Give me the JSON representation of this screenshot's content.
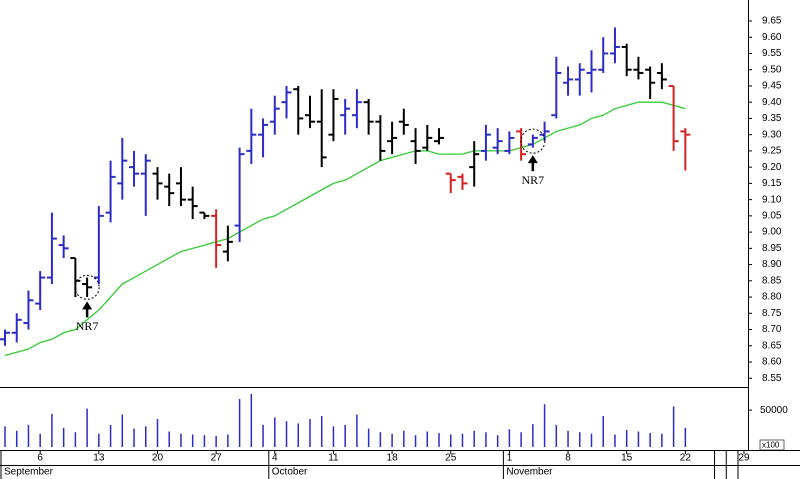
{
  "chart_data": {
    "type": "ohlc",
    "categories": [
      null,
      null,
      null,
      "6",
      null,
      null,
      null,
      null,
      "13",
      null,
      null,
      null,
      null,
      "20",
      null,
      null,
      null,
      null,
      "27",
      null,
      null,
      null,
      null,
      "4",
      null,
      null,
      null,
      null,
      "11",
      null,
      null,
      null,
      null,
      "18",
      null,
      null,
      null,
      null,
      "25",
      null,
      null,
      null,
      null,
      "1",
      null,
      null,
      null,
      null,
      "8",
      null,
      null,
      null,
      null,
      "15",
      null,
      null,
      null,
      null,
      "22",
      null,
      null,
      null,
      null,
      "29"
    ],
    "months": [
      "September",
      null,
      null,
      null,
      null,
      null,
      null,
      null,
      null,
      null,
      null,
      null,
      null,
      null,
      null,
      null,
      null,
      null,
      null,
      null,
      null,
      null,
      null,
      "October",
      null,
      null,
      null,
      null,
      null,
      null,
      null,
      null,
      null,
      null,
      null,
      null,
      null,
      null,
      null,
      null,
      null,
      null,
      null,
      "November",
      null,
      null,
      null,
      null,
      null,
      null,
      null,
      null,
      null,
      null,
      null,
      null,
      null,
      null,
      null,
      null,
      null
    ],
    "open": [
      8.67,
      8.69,
      8.72,
      8.78,
      8.86,
      8.96,
      8.92,
      8.84,
      8.86,
      9.06,
      9.15,
      9.2,
      9.18,
      9.18,
      9.14,
      9.15,
      9.1,
      9.06,
      9.05,
      8.94,
      9.02,
      9.25,
      9.3,
      9.34,
      9.4,
      9.44,
      9.36,
      9.34,
      9.3,
      9.36,
      9.36,
      9.4,
      9.34,
      9.28,
      9.34,
      9.28,
      9.26,
      9.28,
      9.18,
      9.17,
      9.2,
      9.25,
      9.26,
      9.25,
      9.31,
      9.27,
      9.3,
      9.36,
      9.46,
      9.47,
      9.49,
      9.5,
      9.55,
      9.57,
      9.5,
      9.5,
      9.49,
      9.45,
      9.31,
      null,
      null,
      null,
      null,
      null
    ],
    "high": [
      8.7,
      8.75,
      8.82,
      8.88,
      9.06,
      8.99,
      8.92,
      8.86,
      9.08,
      9.22,
      9.29,
      9.25,
      9.24,
      9.2,
      9.18,
      9.2,
      9.14,
      9.06,
      9.07,
      9.02,
      9.26,
      9.38,
      9.35,
      9.42,
      9.45,
      9.45,
      9.42,
      9.44,
      9.44,
      9.41,
      9.44,
      9.41,
      9.36,
      9.34,
      9.38,
      9.32,
      9.33,
      9.32,
      9.18,
      9.18,
      9.28,
      9.33,
      9.32,
      9.31,
      9.32,
      9.3,
      9.34,
      9.54,
      9.51,
      9.52,
      9.56,
      9.6,
      9.63,
      9.58,
      9.54,
      9.51,
      9.52,
      9.45,
      9.32,
      null,
      null,
      null,
      null,
      null
    ],
    "low": [
      8.65,
      8.66,
      8.7,
      8.76,
      8.84,
      8.92,
      8.8,
      8.8,
      8.84,
      9.03,
      9.1,
      9.14,
      9.05,
      9.1,
      9.08,
      9.08,
      9.04,
      9.04,
      8.89,
      8.91,
      8.97,
      9.21,
      9.23,
      9.3,
      9.35,
      9.3,
      9.32,
      9.2,
      9.28,
      9.3,
      9.32,
      9.3,
      9.22,
      9.24,
      9.3,
      9.21,
      9.25,
      9.27,
      9.12,
      9.13,
      9.14,
      9.22,
      9.24,
      9.24,
      9.22,
      9.26,
      9.28,
      9.35,
      9.42,
      9.42,
      9.43,
      9.49,
      9.52,
      9.48,
      9.47,
      9.41,
      9.44,
      9.25,
      9.19,
      null,
      null,
      null,
      null,
      null
    ],
    "close": [
      8.69,
      8.73,
      8.79,
      8.86,
      8.98,
      8.95,
      8.85,
      8.83,
      9.05,
      9.17,
      9.22,
      9.18,
      9.22,
      9.15,
      9.12,
      9.1,
      9.08,
      9.05,
      8.96,
      8.97,
      9.24,
      9.3,
      9.33,
      9.38,
      9.43,
      9.35,
      9.34,
      9.23,
      9.41,
      9.38,
      9.4,
      9.34,
      9.25,
      9.29,
      9.33,
      9.25,
      9.29,
      9.29,
      9.16,
      9.15,
      9.24,
      9.3,
      9.28,
      9.29,
      9.24,
      9.29,
      9.31,
      9.49,
      9.47,
      9.5,
      9.5,
      9.55,
      9.57,
      9.5,
      9.49,
      9.46,
      9.47,
      9.28,
      9.3,
      null,
      null,
      null,
      null,
      null
    ],
    "bar_colors": [
      "#2b2bc8",
      "#2b2bc8",
      "#2b2bc8",
      "#2b2bc8",
      "#2b2bc8",
      "#2b2bc8",
      "#000000",
      "#000000",
      "#2b2bc8",
      "#2b2bc8",
      "#2b2bc8",
      "#2b2bc8",
      "#2b2bc8",
      "#000000",
      "#000000",
      "#000000",
      "#000000",
      "#000000",
      "#d82020",
      "#000000",
      "#2b2bc8",
      "#2b2bc8",
      "#2b2bc8",
      "#2b2bc8",
      "#2b2bc8",
      "#000000",
      "#000000",
      "#000000",
      "#000000",
      "#2b2bc8",
      "#2b2bc8",
      "#000000",
      "#000000",
      "#000000",
      "#000000",
      "#000000",
      "#000000",
      "#000000",
      "#d82020",
      "#d82020",
      "#000000",
      "#2b2bc8",
      "#2b2bc8",
      "#2b2bc8",
      "#d82020",
      "#2b2bc8",
      "#2b2bc8",
      "#2b2bc8",
      "#2b2bc8",
      "#2b2bc8",
      "#2b2bc8",
      "#2b2bc8",
      "#2b2bc8",
      "#000000",
      "#000000",
      "#000000",
      "#000000",
      "#d82020",
      "#d82020",
      null,
      null,
      null,
      null,
      null
    ],
    "moving_average": [
      8.62,
      8.63,
      8.64,
      8.66,
      8.67,
      8.69,
      8.7,
      8.73,
      8.76,
      8.8,
      8.84,
      8.86,
      8.88,
      8.9,
      8.92,
      8.94,
      8.95,
      8.96,
      8.97,
      8.98,
      9.0,
      9.02,
      9.04,
      9.05,
      9.07,
      9.09,
      9.11,
      9.13,
      9.15,
      9.16,
      9.18,
      9.2,
      9.22,
      9.23,
      9.24,
      9.25,
      9.25,
      9.24,
      9.24,
      9.24,
      9.25,
      9.25,
      9.25,
      9.25,
      9.26,
      9.27,
      9.29,
      9.31,
      9.32,
      9.33,
      9.35,
      9.36,
      9.38,
      9.39,
      9.4,
      9.4,
      9.4,
      9.39,
      9.38,
      null,
      null,
      null,
      null,
      null
    ],
    "ma_color": "#33cc33",
    "ylim": [
      8.52,
      9.69
    ],
    "yticks": [
      8.55,
      {
        "value": 8.6,
        "label": "8.60"
      },
      8.65,
      {
        "value": 8.7,
        "label": "8.70"
      },
      8.75,
      {
        "value": 8.8,
        "label": "8.80"
      },
      8.85,
      {
        "value": 8.9,
        "label": "8.90"
      },
      8.95,
      {
        "value": 9,
        "label": "9.00"
      },
      9.05,
      {
        "value": 9.1,
        "label": "9.10"
      },
      9.15,
      {
        "value": 9.2,
        "label": "9.20"
      },
      9.25,
      {
        "value": 9.3,
        "label": "9.30"
      },
      9.35,
      {
        "value": 9.4,
        "label": "9.40"
      },
      9.45,
      {
        "value": 9.5,
        "label": "9.50"
      },
      9.55,
      {
        "value": 9.6,
        "label": "9.60"
      },
      9.65
    ],
    "volume": [
      28000,
      22000,
      30000,
      18000,
      45000,
      26000,
      20000,
      52000,
      18000,
      30000,
      44000,
      25000,
      28000,
      38000,
      21000,
      18000,
      17000,
      16000,
      15000,
      17000,
      65000,
      72000,
      30000,
      40000,
      35000,
      32000,
      38000,
      42000,
      28000,
      30000,
      44000,
      25000,
      20000,
      18000,
      22000,
      16000,
      21000,
      19000,
      17000,
      18000,
      22000,
      20000,
      16000,
      24000,
      20000,
      31000,
      58000,
      30000,
      22000,
      20000,
      18000,
      42000,
      17000,
      23000,
      21000,
      19000,
      18000,
      55000,
      26000,
      null,
      null,
      null,
      null,
      null
    ],
    "volume_color": "#2b2bc8",
    "volume_ylim": [
      0,
      80000
    ],
    "volume_yticks": [
      50000
    ],
    "volume_unit": "x100",
    "annotations": [
      "NR7",
      "NR7"
    ]
  }
}
